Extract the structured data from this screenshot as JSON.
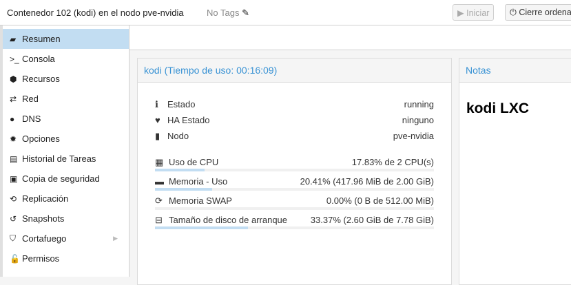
{
  "header": {
    "title": "Contenedor 102 (kodi) en el nodo pve-nvidia",
    "tags": "No Tags",
    "start": "Iniciar",
    "shutdown": "Cierre ordena"
  },
  "sidebar": {
    "items": [
      {
        "label": "Resumen",
        "icon": "book-icon"
      },
      {
        "label": "Consola",
        "icon": "terminal-icon"
      },
      {
        "label": "Recursos",
        "icon": "cube-icon"
      },
      {
        "label": "Red",
        "icon": "exchange-icon"
      },
      {
        "label": "DNS",
        "icon": "globe-icon"
      },
      {
        "label": "Opciones",
        "icon": "gear-icon"
      },
      {
        "label": "Historial de Tareas",
        "icon": "list-icon"
      },
      {
        "label": "Copia de seguridad",
        "icon": "floppy-icon"
      },
      {
        "label": "Replicación",
        "icon": "retweet-icon"
      },
      {
        "label": "Snapshots",
        "icon": "history-icon"
      },
      {
        "label": "Cortafuego",
        "icon": "shield-icon"
      },
      {
        "label": "Permisos",
        "icon": "unlock-icon"
      }
    ]
  },
  "status": {
    "title": "kodi (Tiempo de uso: 00:16:09)",
    "info": [
      {
        "label": "Estado",
        "value": "running"
      },
      {
        "label": "HA Estado",
        "value": "ninguno"
      },
      {
        "label": "Nodo",
        "value": "pve-nvidia"
      }
    ],
    "usage": [
      {
        "label": "Uso de CPU",
        "value": "17.83% de 2 CPU(s)",
        "percent": 17.83
      },
      {
        "label": "Memoria - Uso",
        "value": "20.41% (417.96 MiB de 2.00 GiB)",
        "percent": 20.41
      },
      {
        "label": "Memoria SWAP",
        "value": "0.00% (0 B de 512.00 MiB)",
        "percent": 0
      },
      {
        "label": "Tamaño de disco de arranque",
        "value": "33.37% (2.60 GiB de 7.78 GiB)",
        "percent": 33.37
      }
    ]
  },
  "notes": {
    "title": "Notas",
    "content": "kodi LXC"
  }
}
